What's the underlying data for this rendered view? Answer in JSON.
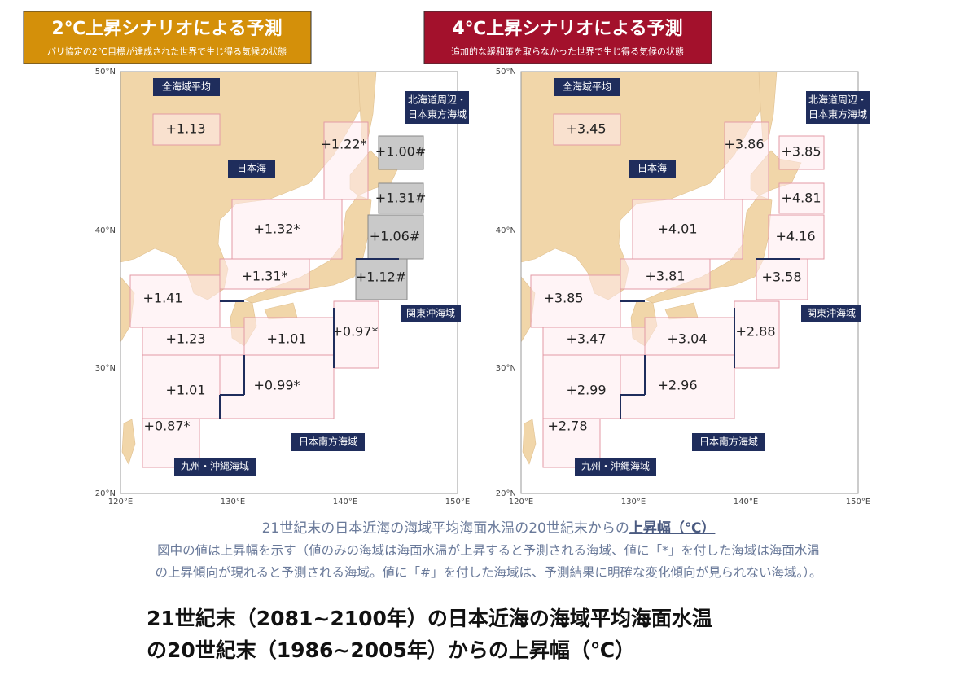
{
  "panels": [
    {
      "header": {
        "title": "2℃上昇シナリオによる予測",
        "subtitle": "パリ協定の2℃目標が達成された世界で生じ得る気候の状態"
      },
      "values": [
        "+1.13",
        "+1.22*",
        "+1.00#",
        "+1.31#",
        "+1.06#",
        "+1.32*",
        "+1.31*",
        "+1.12#",
        "+1.41",
        "+1.23",
        "+1.01",
        "+0.97*",
        "+1.01",
        "+0.99*",
        "+0.87*"
      ]
    },
    {
      "header": {
        "title": "4℃上昇シナリオによる予測",
        "subtitle": "追加的な緩和策を取らなかった世界で生じ得る気候の状態"
      },
      "values": [
        "+3.45",
        "+3.86",
        "+3.85",
        "+4.81",
        "+4.16",
        "+4.01",
        "+3.81",
        "+3.58",
        "+3.85",
        "+3.47",
        "+3.04",
        "+2.88",
        "+2.99",
        "+2.96",
        "+2.78"
      ]
    }
  ],
  "regions": [
    "全海域平均",
    "日本海",
    "北海道周辺・",
    "日本東方海域",
    "関東沖海域",
    "日本南方海域",
    "九州・沖縄海域"
  ],
  "axes": {
    "lat": [
      "50°N",
      "40°N",
      "30°N",
      "20°N"
    ],
    "lon": [
      "120°E",
      "130°E",
      "140°E",
      "150°E"
    ]
  },
  "caption": {
    "line1": "21世紀末の日本近海の海域平均海面水温の20世紀末からの",
    "line1_emphasis": "上昇幅（℃）",
    "line2": "図中の値は上昇幅を示す（値のみの海域は海面水温が上昇すると予測される海域、値に「*」を付した海域は海面水温",
    "line3": "の上昇傾向が現れると予測される海域。値に「#」を付した海域は、予測結果に明確な変化傾向が見られない海域。）。"
  },
  "footer_title": [
    "21世紀末（2081~2100年）の日本近海の海域平均海面水温",
    "の20世紀末（1986~2005年）からの上昇幅（℃）"
  ]
}
